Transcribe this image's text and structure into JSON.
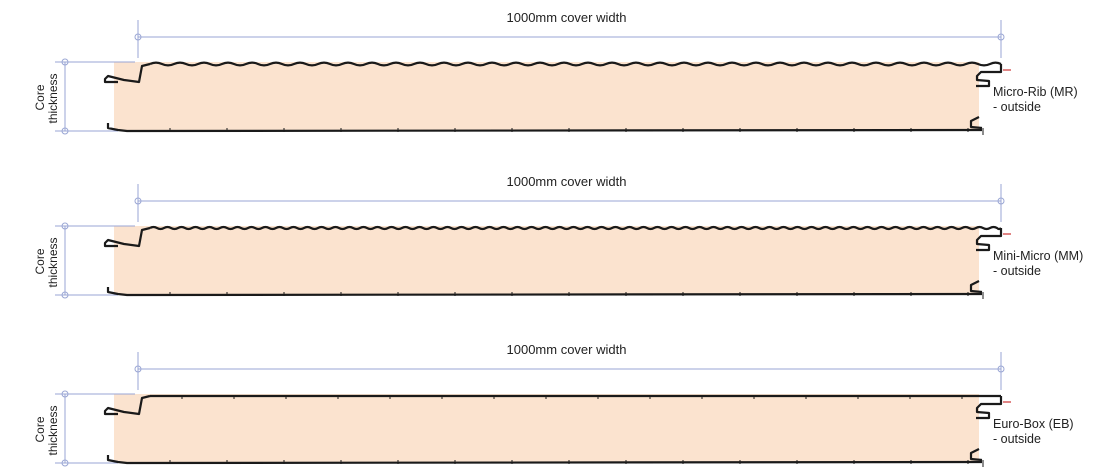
{
  "colors": {
    "core_fill": "#fbe3cf",
    "skin": "#1a1a1a",
    "dimension": "#9aa6d4",
    "joint_mark": "#cc3333"
  },
  "panels": [
    {
      "cover_label": "1000mm cover width",
      "thickness_label_line1": "Core",
      "thickness_label_line2": "thickness",
      "profile_label_line1": "Micro-Rib (MR)",
      "profile_label_line2": "- outside",
      "top_profile": "micro-rib"
    },
    {
      "cover_label": "1000mm cover width",
      "thickness_label_line1": "Core",
      "thickness_label_line2": "thickness",
      "profile_label_line1": "Mini-Micro (MM)",
      "profile_label_line2": "- outside",
      "top_profile": "mini-micro"
    },
    {
      "cover_label": "1000mm cover width",
      "thickness_label_line1": "Core",
      "thickness_label_line2": "thickness",
      "profile_label_line1": "Euro-Box (EB)",
      "profile_label_line2": "- outside",
      "top_profile": "euro-box"
    }
  ]
}
